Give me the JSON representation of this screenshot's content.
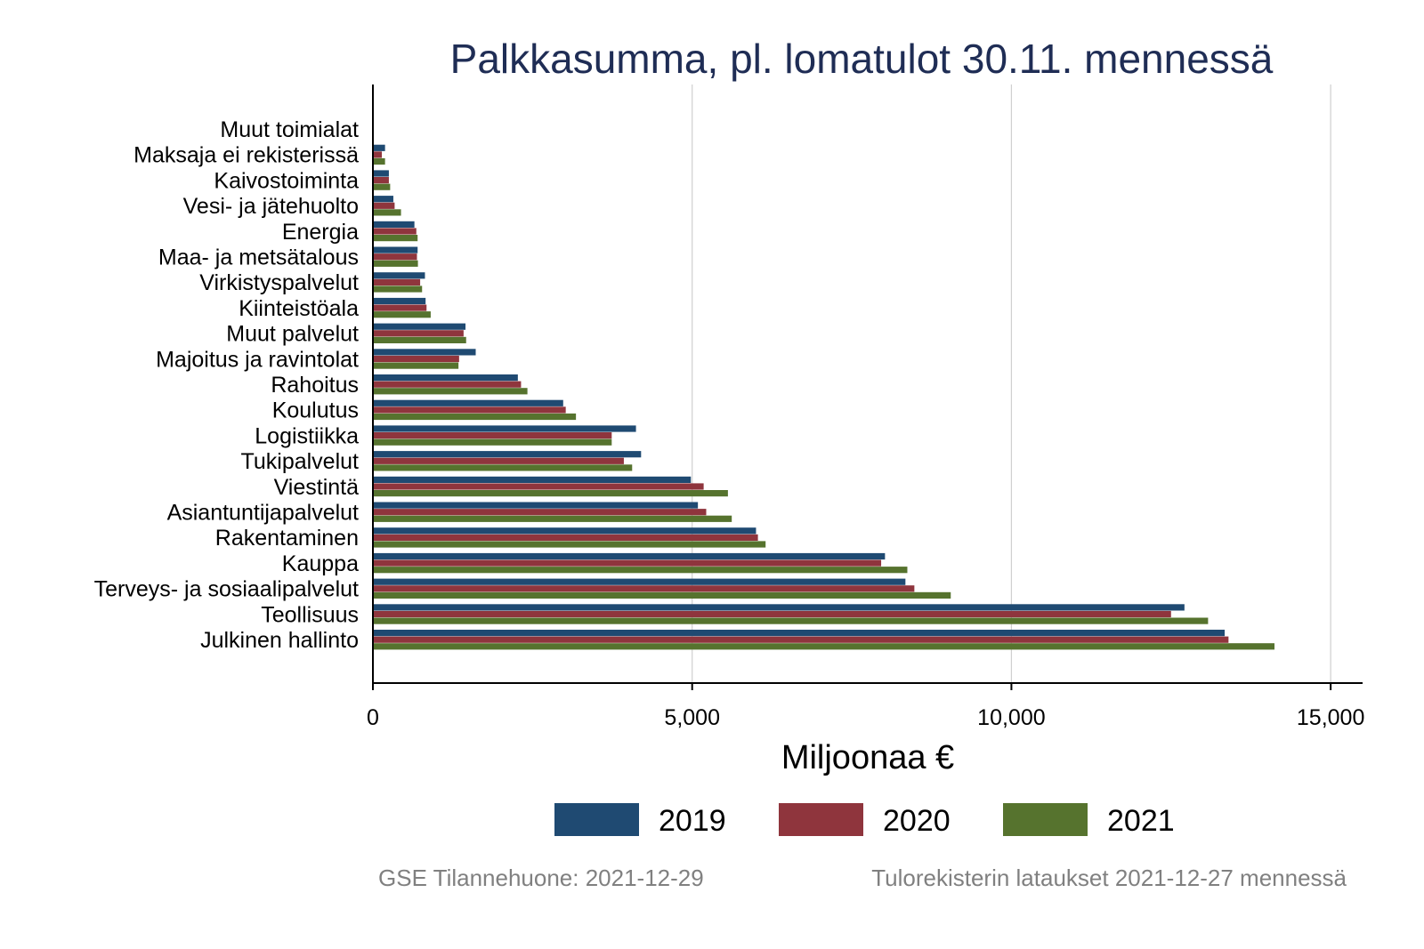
{
  "chart_data": {
    "type": "bar",
    "orientation": "horizontal",
    "title": "Palkkasumma, pl. lomatulot 30.11. mennessä",
    "xlabel": "Miljoonaa €",
    "ylabel": "",
    "xlim": [
      0,
      15500
    ],
    "xticks": [
      0,
      5000,
      10000,
      15000
    ],
    "xtick_labels": [
      "0",
      "5,000",
      "10,000",
      "15,000"
    ],
    "grid": true,
    "legend_position": "bottom",
    "categories": [
      "Muut toimialat",
      "Maksaja ei rekisterissä",
      "Kaivostoiminta",
      "Vesi- ja jätehuolto",
      "Energia",
      "Maa- ja metsätalous",
      "Virkistyspalvelut",
      "Kiinteistöala",
      "Muut palvelut",
      "Majoitus ja ravintolat",
      "Rahoitus",
      "Koulutus",
      "Logistiikka",
      "Tukipalvelut",
      "Viestintä",
      "Asiantuntijapalvelut",
      "Rakentaminen",
      "Kauppa",
      "Terveys- ja sosiaalipalvelut",
      "Teollisuus",
      "Julkinen hallinto"
    ],
    "series": [
      {
        "name": "2019",
        "color": "#1f4a72",
        "values": [
          5,
          190,
          250,
          320,
          650,
          700,
          815,
          825,
          1450,
          1610,
          2270,
          2980,
          4120,
          4200,
          4980,
          5090,
          6000,
          8020,
          8340,
          12710,
          13340
        ]
      },
      {
        "name": "2020",
        "color": "#8f353d",
        "values": [
          5,
          140,
          250,
          340,
          680,
          690,
          740,
          840,
          1420,
          1350,
          2320,
          3020,
          3740,
          3930,
          5180,
          5220,
          6030,
          7960,
          8480,
          12500,
          13400
        ]
      },
      {
        "name": "2021",
        "color": "#56732e",
        "values": [
          5,
          190,
          270,
          440,
          700,
          705,
          770,
          905,
          1460,
          1340,
          2420,
          3180,
          3740,
          4060,
          5560,
          5620,
          6150,
          8370,
          9050,
          13080,
          14120
        ]
      }
    ]
  },
  "footer": {
    "left": "GSE Tilannehuone: 2021-12-29",
    "right": "Tulorekisterin lataukset 2021-12-27 mennessä"
  },
  "colors": {
    "title": "#1f2d55",
    "footer": "#808080",
    "grid": "#d0d0d0"
  }
}
